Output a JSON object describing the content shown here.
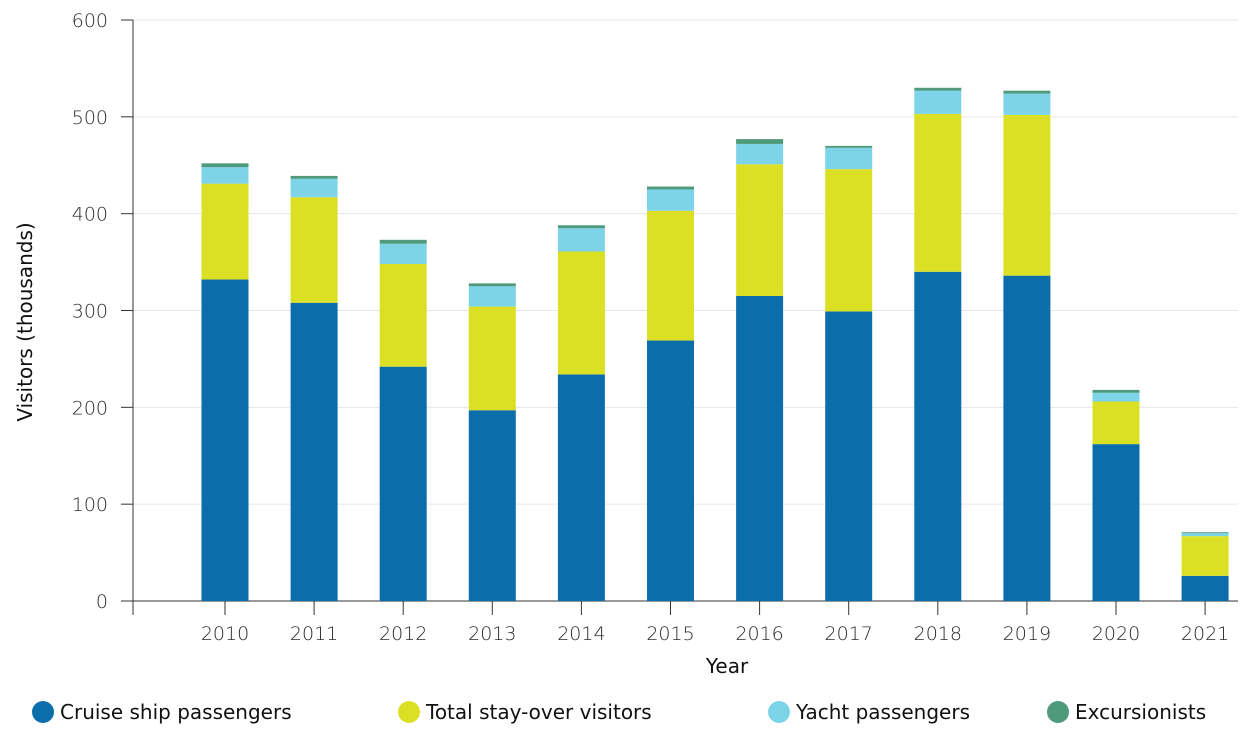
{
  "chart_data": {
    "type": "bar",
    "stacked": true,
    "title": "",
    "xlabel": "Year",
    "ylabel": "Visitors (thousands)",
    "ylim": [
      0,
      600
    ],
    "yticks": [
      0,
      100,
      200,
      300,
      400,
      500,
      600
    ],
    "grid": true,
    "legend_position": "bottom",
    "categories": [
      "2010",
      "2011",
      "2012",
      "2013",
      "2014",
      "2015",
      "2016",
      "2017",
      "2018",
      "2019",
      "2020",
      "2021"
    ],
    "series": [
      {
        "name": "Cruise ship passengers",
        "color": "#0b6eab",
        "values": [
          332,
          308,
          242,
          197,
          234,
          269,
          315,
          299,
          340,
          336,
          162,
          26
        ]
      },
      {
        "name": "Total stay-over visitors",
        "color": "#dbe025",
        "values": [
          99,
          109,
          106,
          107,
          127,
          134,
          136,
          147,
          163,
          166,
          44,
          41
        ]
      },
      {
        "name": "Yacht passengers",
        "color": "#7dd4e8",
        "values": [
          17,
          19,
          21,
          21,
          24,
          22,
          21,
          22,
          24,
          22,
          9,
          3
        ]
      },
      {
        "name": "Excursionists",
        "color": "#4f9a7c",
        "values": [
          4,
          3,
          4,
          3,
          3,
          3,
          5,
          2,
          3,
          3,
          3,
          1
        ]
      }
    ]
  }
}
